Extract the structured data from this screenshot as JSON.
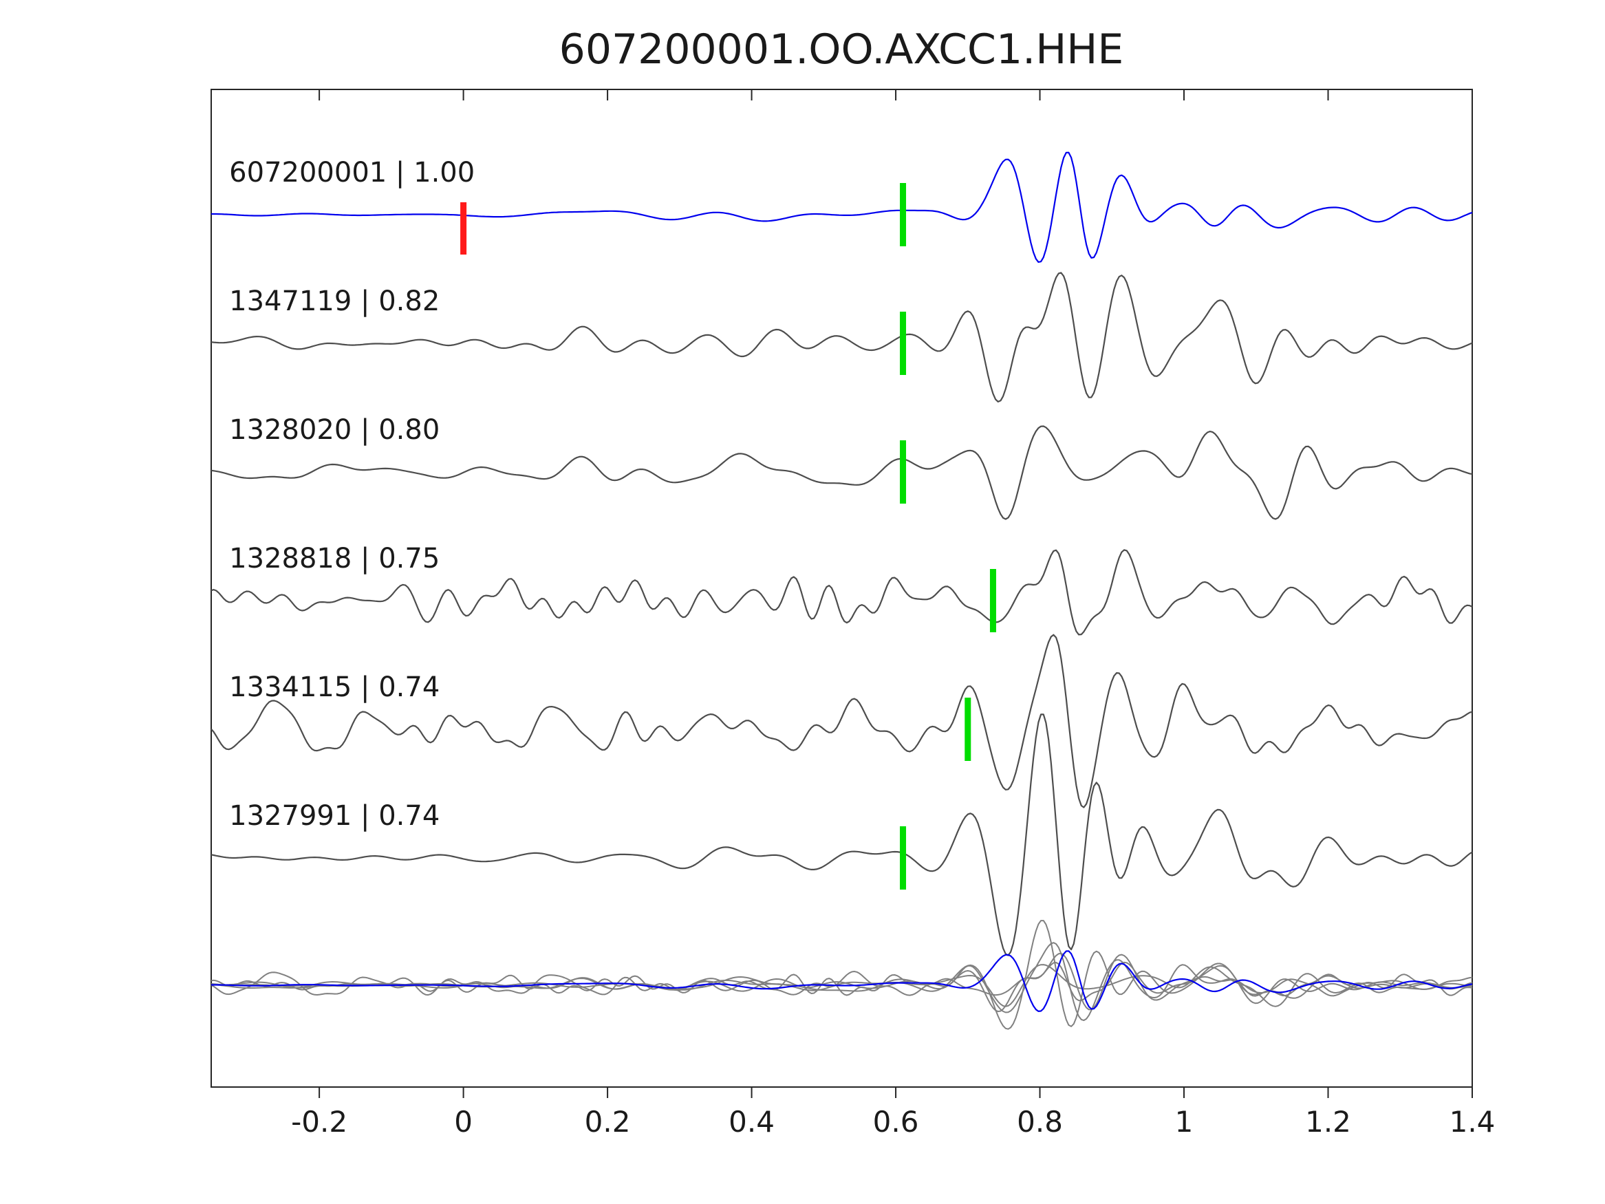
{
  "chart_data": {
    "type": "line",
    "title": "607200001.OO.AXCC1.HHE",
    "xlabel": "",
    "ylabel": "",
    "xlim": [
      -0.35,
      1.4
    ],
    "x_ticks": [
      -0.2,
      0,
      0.2,
      0.4,
      0.6,
      0.8,
      1,
      1.2,
      1.4
    ],
    "x_tick_labels": [
      "-0.2",
      "0",
      "0.2",
      "0.4",
      "0.6",
      "0.8",
      "1",
      "1.2",
      "1.4"
    ],
    "grid": false,
    "legend": "none",
    "colors": {
      "template": "#0000ee",
      "match": "#4d4d4d",
      "overlay_match": "#808080",
      "pick_marker": "#00dd00",
      "zero_marker": "#ff1a1a",
      "axis": "#262626",
      "text": "#1a1a1a",
      "background": "#ffffff"
    },
    "traces": [
      {
        "label": "607200001 | 1.00",
        "id": "607200001",
        "correlation": "1.00",
        "kind": "template",
        "pick_x": 0.61,
        "zero_marker_x": 0.0,
        "seed": 101,
        "noise": 5,
        "burst": 95
      },
      {
        "label": "1347119 | 0.82",
        "id": "1347119",
        "correlation": "0.82",
        "kind": "match",
        "pick_x": 0.61,
        "seed": 7,
        "noise": 9,
        "burst": 95
      },
      {
        "label": "1328020 | 0.80",
        "id": "1328020",
        "correlation": "0.80",
        "kind": "match",
        "pick_x": 0.61,
        "seed": 23,
        "noise": 9,
        "burst": 100
      },
      {
        "label": "1328818 | 0.75",
        "id": "1328818",
        "correlation": "0.75",
        "kind": "match",
        "pick_x": 0.735,
        "seed": 31,
        "noise": 16,
        "burst": 70
      },
      {
        "label": "1334115 | 0.74",
        "id": "1334115",
        "correlation": "0.74",
        "kind": "match",
        "pick_x": 0.7,
        "seed": 47,
        "noise": 17,
        "burst": 80
      },
      {
        "label": "1327991 | 0.74",
        "id": "1327991",
        "correlation": "0.74",
        "kind": "match",
        "pick_x": 0.61,
        "seed": 59,
        "noise": 8,
        "burst": 112
      }
    ],
    "overlay": {
      "description": "all matched waveforms overlaid with template trace",
      "match_scale": 0.45,
      "template_scale": 0.55
    }
  }
}
